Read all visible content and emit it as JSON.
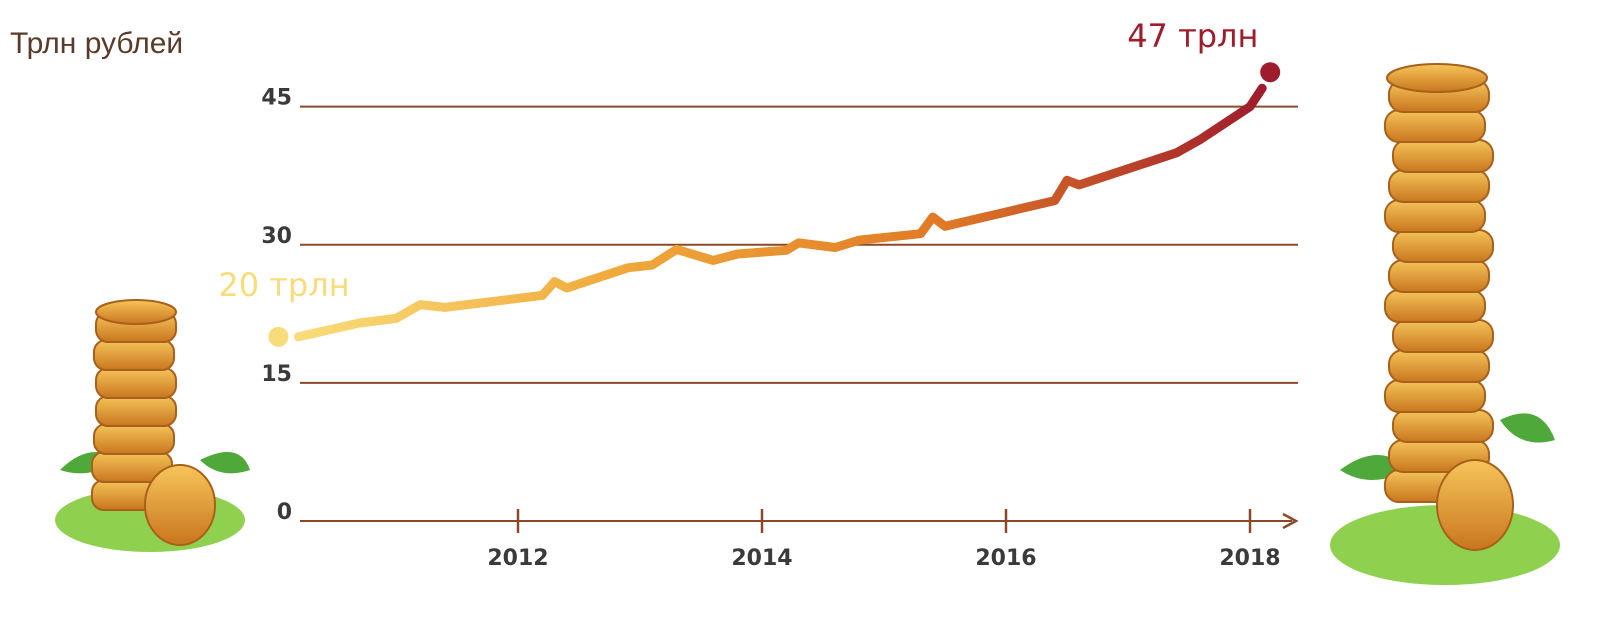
{
  "chart_data": {
    "type": "line",
    "y_label": "Трлн рублей",
    "x": [
      2010.2,
      2010.7,
      2011.0,
      2011.2,
      2011.4,
      2012.2,
      2012.3,
      2012.4,
      2012.9,
      2013.1,
      2013.3,
      2013.6,
      2013.8,
      2014.2,
      2014.3,
      2014.6,
      2014.8,
      2015.3,
      2015.4,
      2015.5,
      2016.4,
      2016.5,
      2016.6,
      2017.4,
      2017.6,
      2018.0,
      2018.1
    ],
    "series": [
      {
        "colors": [
          "#f9dc7a",
          "#f0a93a",
          "#e07a26",
          "#9e1c2c"
        ],
        "values": [
          20,
          21.5,
          22,
          23.5,
          23.2,
          24.5,
          26,
          25.3,
          27.5,
          27.8,
          29.5,
          28.3,
          29,
          29.4,
          30.2,
          29.7,
          30.5,
          31.2,
          33,
          32,
          34.8,
          37,
          36.5,
          40,
          41.5,
          45,
          47
        ],
        "value_labels": [
          "20 трлн",
          null,
          null,
          null,
          null,
          null,
          null,
          null,
          null,
          null,
          null,
          null,
          null,
          null,
          null,
          null,
          null,
          null,
          null,
          null,
          null,
          null,
          null,
          null,
          null,
          null,
          "47 трлн"
        ]
      }
    ],
    "xlim": [
      2010.2,
      2018.3
    ],
    "xticks": [
      2012,
      2014,
      2016,
      2018
    ],
    "ylim": [
      0,
      48
    ],
    "yticks": [
      0,
      15,
      30,
      45
    ],
    "grid": true,
    "grid_color": "#8a4a2a"
  }
}
